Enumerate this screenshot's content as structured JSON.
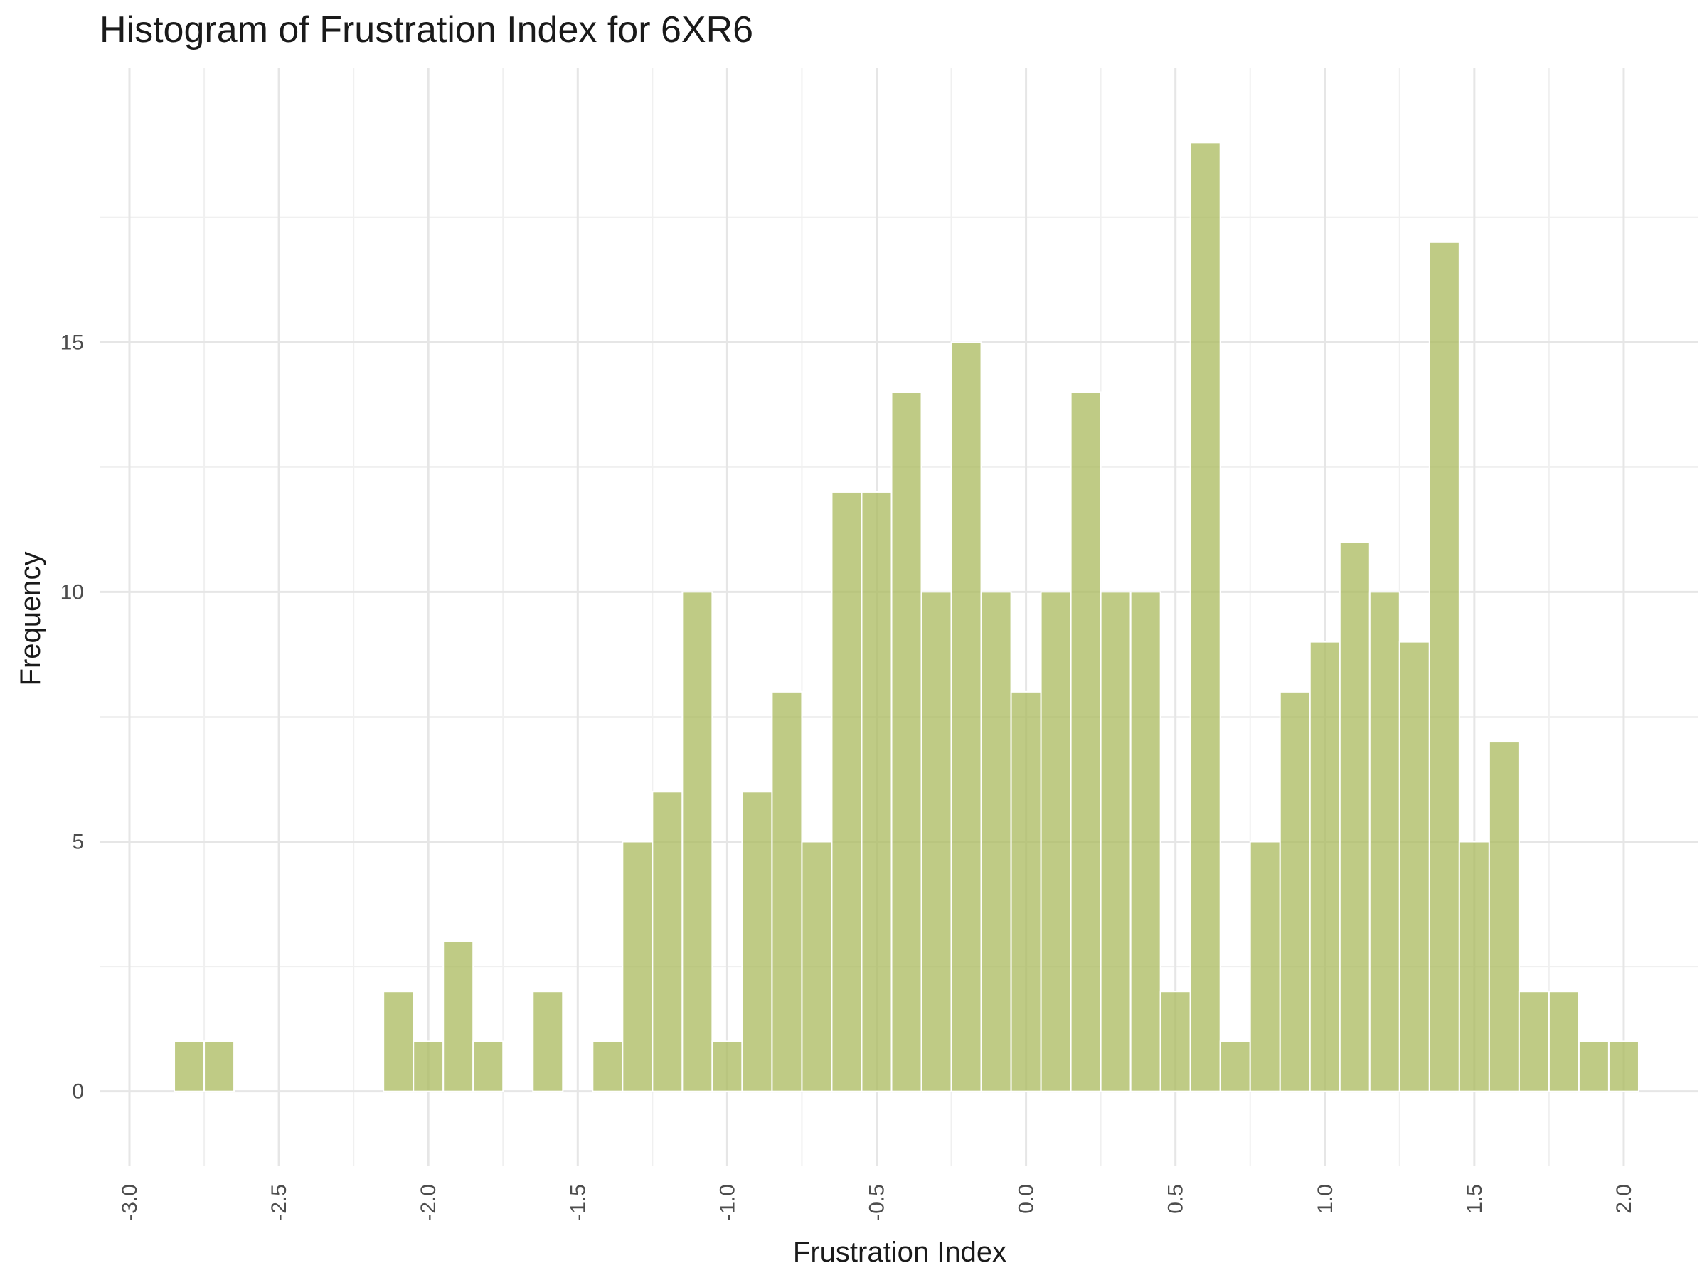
{
  "chart_data": {
    "type": "bar",
    "title": "Histogram of Frustration Index for 6XR6",
    "xlabel": "Frustration Index",
    "ylabel": "Frequency",
    "xlim": [
      -3.1,
      2.25
    ],
    "ylim": [
      -1.5,
      20.5
    ],
    "x_ticks": [
      -3.0,
      -2.5,
      -2.0,
      -1.5,
      -1.0,
      -0.5,
      0.0,
      0.5,
      1.0,
      1.5,
      2.0
    ],
    "x_tick_labels": [
      "-3.0",
      "-2.5",
      "-2.0",
      "-1.5",
      "-1.0",
      "-0.5",
      "0.0",
      "0.5",
      "1.0",
      "1.5",
      "2.0"
    ],
    "y_ticks": [
      0,
      5,
      10,
      15
    ],
    "y_tick_labels": [
      "0",
      "5",
      "10",
      "15"
    ],
    "grid": true,
    "bin_width": 0.1,
    "bins": [
      {
        "x": -2.8,
        "count": 1
      },
      {
        "x": -2.7,
        "count": 1
      },
      {
        "x": -2.1,
        "count": 2
      },
      {
        "x": -2.0,
        "count": 1
      },
      {
        "x": -1.9,
        "count": 3
      },
      {
        "x": -1.8,
        "count": 1
      },
      {
        "x": -1.6,
        "count": 2
      },
      {
        "x": -1.4,
        "count": 1
      },
      {
        "x": -1.3,
        "count": 5
      },
      {
        "x": -1.2,
        "count": 6
      },
      {
        "x": -1.1,
        "count": 10
      },
      {
        "x": -1.0,
        "count": 1
      },
      {
        "x": -0.9,
        "count": 6
      },
      {
        "x": -0.8,
        "count": 8
      },
      {
        "x": -0.7,
        "count": 5
      },
      {
        "x": -0.6,
        "count": 12
      },
      {
        "x": -0.5,
        "count": 12
      },
      {
        "x": -0.4,
        "count": 14
      },
      {
        "x": -0.3,
        "count": 10
      },
      {
        "x": -0.2,
        "count": 15
      },
      {
        "x": -0.1,
        "count": 10
      },
      {
        "x": 0.0,
        "count": 8
      },
      {
        "x": 0.1,
        "count": 10
      },
      {
        "x": 0.2,
        "count": 14
      },
      {
        "x": 0.3,
        "count": 10
      },
      {
        "x": 0.4,
        "count": 10
      },
      {
        "x": 0.5,
        "count": 2
      },
      {
        "x": 0.6,
        "count": 19
      },
      {
        "x": 0.7,
        "count": 1
      },
      {
        "x": 0.8,
        "count": 5
      },
      {
        "x": 0.9,
        "count": 8
      },
      {
        "x": 1.0,
        "count": 9
      },
      {
        "x": 1.1,
        "count": 11
      },
      {
        "x": 1.2,
        "count": 10
      },
      {
        "x": 1.3,
        "count": 9
      },
      {
        "x": 1.4,
        "count": 17
      },
      {
        "x": 1.5,
        "count": 5
      },
      {
        "x": 1.6,
        "count": 7
      },
      {
        "x": 1.7,
        "count": 2
      },
      {
        "x": 1.8,
        "count": 2
      },
      {
        "x": 1.9,
        "count": 1
      },
      {
        "x": 2.0,
        "count": 1
      }
    ],
    "bar_color": "#a9b95c"
  }
}
